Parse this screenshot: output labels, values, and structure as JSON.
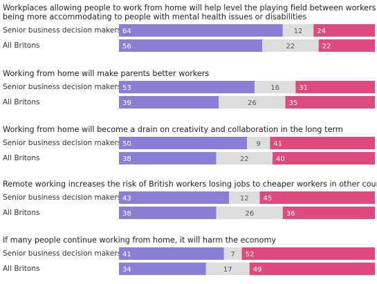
{
  "chart_data": {
    "type": "bar",
    "stacked": true,
    "orientation": "horizontal",
    "row_labels": [
      "Senior business decision makers",
      "All Britons"
    ],
    "series_colors": [
      "#8a7fd4",
      "#dddddd",
      "#de4a7d"
    ],
    "value_max": 100,
    "questions": [
      {
        "title_lines": [
          "Workplaces allowing people to work from home will help level the playing field between workers by",
          "being more accommodating to people with mental health issues or disabilities"
        ],
        "rows": [
          [
            64,
            12,
            24
          ],
          [
            56,
            22,
            22
          ]
        ]
      },
      {
        "title_lines": [
          "Working from home will make parents better workers"
        ],
        "rows": [
          [
            53,
            16,
            31
          ],
          [
            39,
            26,
            35
          ]
        ]
      },
      {
        "title_lines": [
          "Working from home will become a drain on creativity and collaboration in the long term"
        ],
        "rows": [
          [
            50,
            9,
            41
          ],
          [
            38,
            22,
            40
          ]
        ]
      },
      {
        "title_lines": [
          "Remote working increases the risk of British workers losing jobs to cheaper workers in other countries"
        ],
        "rows": [
          [
            43,
            12,
            45
          ],
          [
            38,
            26,
            36
          ]
        ]
      },
      {
        "title_lines": [
          "If many people continue working from home, it will harm the economy"
        ],
        "rows": [
          [
            41,
            7,
            52
          ],
          [
            34,
            17,
            49
          ]
        ]
      }
    ]
  }
}
